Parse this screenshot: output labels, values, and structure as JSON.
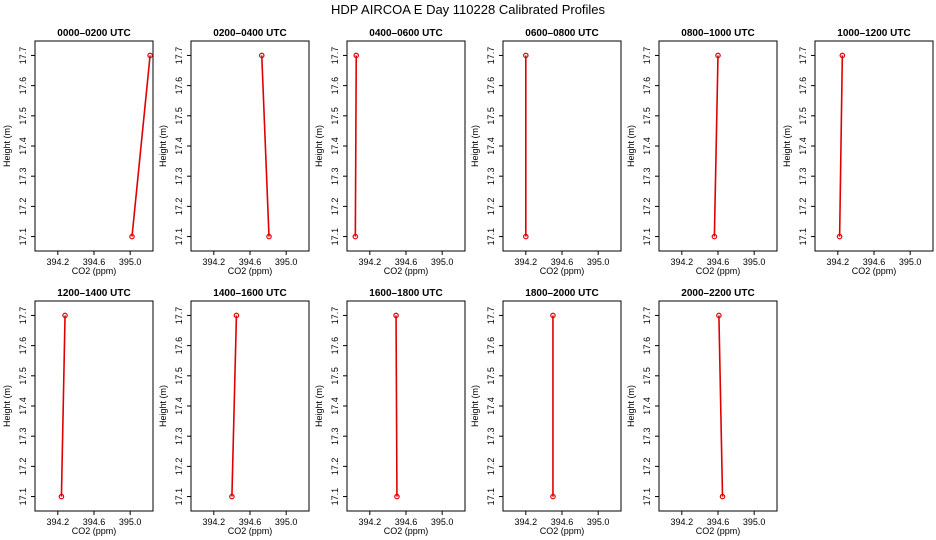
{
  "figure": {
    "title": "HDP AIRCOA E  Day 110228  Calibrated Profiles"
  },
  "colors": {
    "line": "#e00000",
    "marker": "#e00000",
    "axis": "#000000",
    "background": "#ffffff"
  },
  "chart_data": [
    {
      "type": "line",
      "title": "0000–0200 UTC",
      "xlabel": "CO2 (ppm)",
      "ylabel": "Height (m)",
      "xlim": [
        394.0,
        395.2
      ],
      "ylim": [
        17.08,
        17.72
      ],
      "xticks": [
        "394.2",
        "394.6",
        "395.0"
      ],
      "yticks": [
        "17.1",
        "17.2",
        "17.3",
        "17.4",
        "17.5",
        "17.6",
        "17.7"
      ],
      "series": [
        {
          "x": [
            395.02,
            395.22
          ],
          "y": [
            17.1,
            17.7
          ]
        }
      ]
    },
    {
      "type": "line",
      "title": "0200–0400 UTC",
      "xlabel": "CO2 (ppm)",
      "ylabel": "Height (m)",
      "xlim": [
        394.0,
        395.2
      ],
      "ylim": [
        17.08,
        17.72
      ],
      "xticks": [
        "394.2",
        "394.6",
        "395.0"
      ],
      "yticks": [
        "17.1",
        "17.2",
        "17.3",
        "17.4",
        "17.5",
        "17.6",
        "17.7"
      ],
      "series": [
        {
          "x": [
            394.81,
            394.73
          ],
          "y": [
            17.1,
            17.7
          ]
        }
      ]
    },
    {
      "type": "line",
      "title": "0400–0600 UTC",
      "xlabel": "CO2 (ppm)",
      "ylabel": "Height (m)",
      "xlim": [
        394.0,
        395.2
      ],
      "ylim": [
        17.08,
        17.72
      ],
      "xticks": [
        "394.2",
        "394.6",
        "395.0"
      ],
      "yticks": [
        "17.1",
        "17.2",
        "17.3",
        "17.4",
        "17.5",
        "17.6",
        "17.7"
      ],
      "series": [
        {
          "x": [
            394.04,
            394.05
          ],
          "y": [
            17.1,
            17.7
          ]
        }
      ]
    },
    {
      "type": "line",
      "title": "0600–0800 UTC",
      "xlabel": "CO2 (ppm)",
      "ylabel": "Height (m)",
      "xlim": [
        394.0,
        395.2
      ],
      "ylim": [
        17.08,
        17.72
      ],
      "xticks": [
        "394.2",
        "394.6",
        "395.0"
      ],
      "yticks": [
        "17.1",
        "17.2",
        "17.3",
        "17.4",
        "17.5",
        "17.6",
        "17.7"
      ],
      "series": [
        {
          "x": [
            394.2,
            394.2
          ],
          "y": [
            17.1,
            17.7
          ]
        }
      ]
    },
    {
      "type": "line",
      "title": "0800–1000 UTC",
      "xlabel": "CO2 (ppm)",
      "ylabel": "Height (m)",
      "xlim": [
        394.0,
        395.2
      ],
      "ylim": [
        17.08,
        17.72
      ],
      "xticks": [
        "394.2",
        "394.6",
        "395.0"
      ],
      "yticks": [
        "17.1",
        "17.2",
        "17.3",
        "17.4",
        "17.5",
        "17.6",
        "17.7"
      ],
      "series": [
        {
          "x": [
            394.56,
            394.6
          ],
          "y": [
            17.1,
            17.7
          ]
        }
      ]
    },
    {
      "type": "line",
      "title": "1000–1200 UTC",
      "xlabel": "CO2 (ppm)",
      "ylabel": "Height (m)",
      "xlim": [
        394.0,
        395.2
      ],
      "ylim": [
        17.08,
        17.72
      ],
      "xticks": [
        "394.2",
        "394.6",
        "395.0"
      ],
      "yticks": [
        "17.1",
        "17.2",
        "17.3",
        "17.4",
        "17.5",
        "17.6",
        "17.7"
      ],
      "series": [
        {
          "x": [
            394.22,
            394.25
          ],
          "y": [
            17.1,
            17.7
          ]
        }
      ]
    },
    {
      "type": "line",
      "title": "1200–1400 UTC",
      "xlabel": "CO2 (ppm)",
      "ylabel": "Height (m)",
      "xlim": [
        394.0,
        395.2
      ],
      "ylim": [
        17.08,
        17.72
      ],
      "xticks": [
        "394.2",
        "394.6",
        "395.0"
      ],
      "yticks": [
        "17.1",
        "17.2",
        "17.3",
        "17.4",
        "17.5",
        "17.6",
        "17.7"
      ],
      "series": [
        {
          "x": [
            394.24,
            394.28
          ],
          "y": [
            17.1,
            17.7
          ]
        }
      ]
    },
    {
      "type": "line",
      "title": "1400–1600 UTC",
      "xlabel": "CO2 (ppm)",
      "ylabel": "Height (m)",
      "xlim": [
        394.0,
        395.2
      ],
      "ylim": [
        17.08,
        17.72
      ],
      "xticks": [
        "394.2",
        "394.6",
        "395.0"
      ],
      "yticks": [
        "17.1",
        "17.2",
        "17.3",
        "17.4",
        "17.5",
        "17.6",
        "17.7"
      ],
      "series": [
        {
          "x": [
            394.4,
            394.45
          ],
          "y": [
            17.1,
            17.7
          ]
        }
      ]
    },
    {
      "type": "line",
      "title": "1600–1800 UTC",
      "xlabel": "CO2 (ppm)",
      "ylabel": "Height (m)",
      "xlim": [
        394.0,
        395.2
      ],
      "ylim": [
        17.08,
        17.72
      ],
      "xticks": [
        "394.2",
        "394.6",
        "395.0"
      ],
      "yticks": [
        "17.1",
        "17.2",
        "17.3",
        "17.4",
        "17.5",
        "17.6",
        "17.7"
      ],
      "series": [
        {
          "x": [
            394.5,
            394.49
          ],
          "y": [
            17.1,
            17.7
          ]
        }
      ]
    },
    {
      "type": "line",
      "title": "1800–2000 UTC",
      "xlabel": "CO2 (ppm)",
      "ylabel": "Height (m)",
      "xlim": [
        394.0,
        395.2
      ],
      "ylim": [
        17.08,
        17.72
      ],
      "xticks": [
        "394.2",
        "394.6",
        "395.0"
      ],
      "yticks": [
        "17.1",
        "17.2",
        "17.3",
        "17.4",
        "17.5",
        "17.6",
        "17.7"
      ],
      "series": [
        {
          "x": [
            394.5,
            394.5
          ],
          "y": [
            17.1,
            17.7
          ]
        }
      ]
    },
    {
      "type": "line",
      "title": "2000–2200 UTC",
      "xlabel": "CO2 (ppm)",
      "ylabel": "Height (m)",
      "xlim": [
        394.0,
        395.2
      ],
      "ylim": [
        17.08,
        17.72
      ],
      "xticks": [
        "394.2",
        "394.6",
        "395.0"
      ],
      "yticks": [
        "17.1",
        "17.2",
        "17.3",
        "17.4",
        "17.5",
        "17.6",
        "17.7"
      ],
      "series": [
        {
          "x": [
            394.65,
            394.61
          ],
          "y": [
            17.1,
            17.7
          ]
        }
      ]
    }
  ]
}
